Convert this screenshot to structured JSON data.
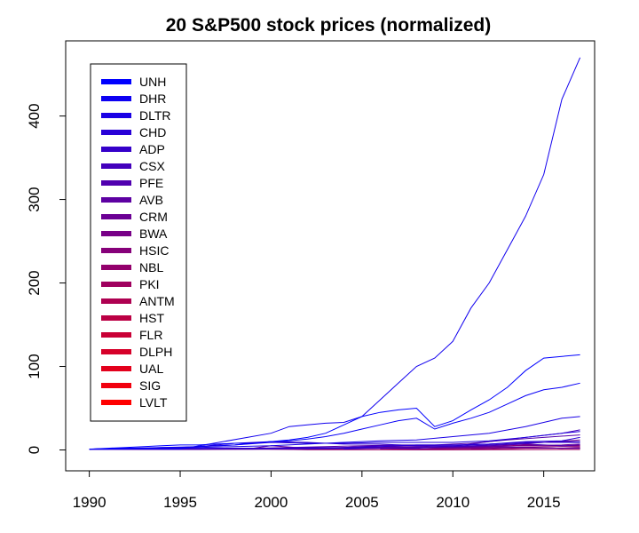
{
  "chart_data": {
    "type": "line",
    "title": "20 S&P500 stock prices (normalized)",
    "xlabel": "",
    "ylabel": "",
    "xlim": [
      1988.7,
      2017.8
    ],
    "ylim": [
      -25,
      490
    ],
    "x_ticks": [
      1990,
      1995,
      2000,
      2005,
      2010,
      2015
    ],
    "y_ticks": [
      0,
      100,
      200,
      300,
      400
    ],
    "legend_position": "top-left",
    "grid": false,
    "series": [
      {
        "name": "UNH",
        "color": "#0000ff",
        "x": [
          1990,
          1991,
          1992,
          1993,
          1994,
          1995,
          1996,
          1997,
          1998,
          1999,
          2000,
          2001,
          2002,
          2003,
          2004,
          2005,
          2006,
          2007,
          2008,
          2009,
          2010,
          2011,
          2012,
          2013,
          2014,
          2015,
          2016,
          2017
        ],
        "values": [
          1,
          2,
          3,
          4,
          5,
          6,
          6,
          7,
          8,
          8,
          10,
          12,
          15,
          20,
          30,
          40,
          45,
          48,
          50,
          28,
          35,
          48,
          60,
          75,
          95,
          110,
          112,
          114
        ]
      },
      {
        "name": "DHR",
        "color": "#0800f6",
        "x": [
          1990,
          1991,
          1992,
          1993,
          1994,
          1995,
          1996,
          1997,
          1998,
          1999,
          2000,
          2001,
          2002,
          2003,
          2004,
          2005,
          2006,
          2007,
          2008,
          2009,
          2010,
          2011,
          2012,
          2013,
          2014,
          2015,
          2016,
          2017
        ],
        "values": [
          1,
          1,
          2,
          2,
          3,
          3,
          4,
          5,
          6,
          8,
          10,
          11,
          13,
          16,
          20,
          25,
          30,
          35,
          38,
          25,
          32,
          38,
          45,
          55,
          65,
          72,
          75,
          80
        ]
      },
      {
        "name": "DLTR",
        "color": "#1100ee",
        "x": [
          1990,
          1995,
          2000,
          2001,
          2002,
          2003,
          2004,
          2005,
          2006,
          2007,
          2008,
          2009,
          2010,
          2011,
          2012,
          2013,
          2014,
          2015,
          2016,
          2017
        ],
        "values": [
          1,
          1,
          20,
          28,
          30,
          32,
          33,
          40,
          60,
          80,
          100,
          110,
          130,
          170,
          200,
          240,
          280,
          330,
          420,
          470
        ]
      },
      {
        "name": "CHD",
        "color": "#1900e5",
        "x": [
          1990,
          1992,
          1994,
          1996,
          1998,
          2000,
          2002,
          2004,
          2006,
          2008,
          2010,
          2012,
          2014,
          2016,
          2017
        ],
        "values": [
          1,
          2,
          2,
          3,
          4,
          5,
          7,
          9,
          11,
          12,
          16,
          20,
          28,
          38,
          40
        ]
      },
      {
        "name": "ADP",
        "color": "#2200dd",
        "x": [
          1990,
          1992,
          1994,
          1996,
          1998,
          2000,
          2002,
          2004,
          2006,
          2008,
          2010,
          2012,
          2014,
          2016,
          2017
        ],
        "values": [
          1,
          2,
          3,
          4,
          6,
          9,
          8,
          8,
          9,
          9,
          9,
          11,
          15,
          20,
          22
        ]
      },
      {
        "name": "CSX",
        "color": "#2a00d5",
        "x": [
          1990,
          1992,
          1994,
          1996,
          1998,
          2000,
          2002,
          2004,
          2006,
          2008,
          2010,
          2012,
          2014,
          2016,
          2017
        ],
        "values": [
          1,
          1,
          2,
          2,
          2,
          2,
          2,
          2,
          4,
          6,
          6,
          7,
          10,
          11,
          15
        ]
      },
      {
        "name": "PFE",
        "color": "#3300cc",
        "x": [
          1990,
          1992,
          1994,
          1996,
          1998,
          2000,
          2002,
          2004,
          2006,
          2008,
          2010,
          2012,
          2014,
          2016,
          2017
        ],
        "values": [
          1,
          2,
          2,
          4,
          8,
          10,
          9,
          7,
          7,
          5,
          5,
          7,
          9,
          9,
          9
        ]
      },
      {
        "name": "AVB",
        "color": "#3b00c4",
        "x": [
          1994,
          1996,
          1998,
          2000,
          2002,
          2004,
          2006,
          2008,
          2010,
          2012,
          2014,
          2016,
          2017
        ],
        "values": [
          1,
          1,
          2,
          2,
          3,
          3,
          5,
          5,
          4,
          6,
          8,
          10,
          10
        ]
      },
      {
        "name": "CRM",
        "color": "#4400bb",
        "x": [
          2004,
          2006,
          2008,
          2010,
          2012,
          2014,
          2016,
          2017
        ],
        "values": [
          1,
          2,
          3,
          4,
          10,
          15,
          20,
          24
        ]
      },
      {
        "name": "BWA",
        "color": "#4c00b3",
        "x": [
          1993,
          1996,
          1999,
          2002,
          2005,
          2008,
          2010,
          2012,
          2014,
          2016,
          2017
        ],
        "values": [
          1,
          1,
          1,
          2,
          2,
          2,
          4,
          5,
          7,
          5,
          6
        ]
      },
      {
        "name": "HSIC",
        "color": "#5500aa",
        "x": [
          1995,
          1997,
          1999,
          2001,
          2003,
          2005,
          2007,
          2009,
          2011,
          2013,
          2015,
          2017
        ],
        "values": [
          1,
          2,
          2,
          3,
          4,
          5,
          6,
          6,
          8,
          12,
          15,
          18
        ]
      },
      {
        "name": "NBL",
        "color": "#5d00a2",
        "x": [
          1990,
          1993,
          1996,
          1999,
          2002,
          2005,
          2008,
          2010,
          2012,
          2014,
          2016,
          2017
        ],
        "values": [
          1,
          1,
          1,
          1,
          1,
          3,
          4,
          3,
          4,
          3,
          2,
          2
        ]
      },
      {
        "name": "PKI",
        "color": "#660099",
        "x": [
          1990,
          1993,
          1996,
          1999,
          2000,
          2002,
          2004,
          2006,
          2008,
          2010,
          2012,
          2014,
          2016,
          2017
        ],
        "values": [
          1,
          1,
          1,
          2,
          5,
          2,
          3,
          3,
          3,
          3,
          4,
          5,
          6,
          7
        ]
      },
      {
        "name": "ANTM",
        "color": "#6e0091",
        "x": [
          2001,
          2003,
          2005,
          2007,
          2009,
          2011,
          2013,
          2015,
          2017
        ],
        "values": [
          1,
          2,
          4,
          4,
          3,
          4,
          6,
          9,
          12
        ]
      },
      {
        "name": "HST",
        "color": "#770088",
        "x": [
          1990,
          1993,
          1996,
          1999,
          2002,
          2004,
          2006,
          2008,
          2010,
          2012,
          2014,
          2016,
          2017
        ],
        "values": [
          1,
          1,
          1,
          2,
          1,
          2,
          3,
          1,
          2,
          2,
          3,
          2,
          2
        ]
      },
      {
        "name": "FLR",
        "color": "#7f0080",
        "x": [
          1990,
          1993,
          1996,
          1999,
          2002,
          2004,
          2006,
          2008,
          2010,
          2012,
          2014,
          2016,
          2017
        ],
        "values": [
          1,
          1,
          1,
          1,
          1,
          1,
          2,
          3,
          2,
          3,
          3,
          2,
          3
        ]
      },
      {
        "name": "DLPH",
        "color": "#880077",
        "x": [
          2011,
          2013,
          2015,
          2017
        ],
        "values": [
          1,
          3,
          4,
          4
        ]
      },
      {
        "name": "UAL",
        "color": "#90006f",
        "x": [
          2006,
          2008,
          2010,
          2012,
          2014,
          2016,
          2017
        ],
        "values": [
          1,
          0.5,
          1,
          1,
          2,
          2,
          2
        ]
      },
      {
        "name": "SIG",
        "color": "#990066",
        "x": [
          1990,
          1993,
          1996,
          1999,
          2002,
          2004,
          2006,
          2008,
          2010,
          2012,
          2014,
          2016,
          2017
        ],
        "values": [
          1,
          0.5,
          0.5,
          1,
          1,
          2,
          2,
          1,
          2,
          4,
          6,
          5,
          5
        ]
      },
      {
        "name": "LVLT",
        "color": "#a1005e",
        "x": [
          1998,
          1999,
          2000,
          2002,
          2004,
          2006,
          2008,
          2010,
          2012,
          2014,
          2016,
          2017
        ],
        "values": [
          1,
          2,
          1,
          0.2,
          0.3,
          0.3,
          0.1,
          0.1,
          0.2,
          0.4,
          0.5,
          0.5
        ]
      }
    ],
    "legend": [
      {
        "label": "UNH",
        "color": "#0000ff"
      },
      {
        "label": "DHR",
        "color": "#0d00f2"
      },
      {
        "label": "DLTR",
        "color": "#1a00e5"
      },
      {
        "label": "CHD",
        "color": "#2800d7"
      },
      {
        "label": "ADP",
        "color": "#3500ca"
      },
      {
        "label": "CSX",
        "color": "#4300bc"
      },
      {
        "label": "PFE",
        "color": "#5000af"
      },
      {
        "label": "AVB",
        "color": "#5d00a2"
      },
      {
        "label": "CRM",
        "color": "#6b0094"
      },
      {
        "label": "BWA",
        "color": "#780087"
      },
      {
        "label": "HSIC",
        "color": "#860079"
      },
      {
        "label": "NBL",
        "color": "#93006c"
      },
      {
        "label": "PKI",
        "color": "#a0005f"
      },
      {
        "label": "ANTM",
        "color": "#ae0051"
      },
      {
        "label": "HST",
        "color": "#bb0044"
      },
      {
        "label": "FLR",
        "color": "#c90036"
      },
      {
        "label": "DLPH",
        "color": "#d60029"
      },
      {
        "label": "UAL",
        "color": "#e3001c"
      },
      {
        "label": "SIG",
        "color": "#f1000e"
      },
      {
        "label": "LVLT",
        "color": "#ff0000"
      }
    ]
  }
}
